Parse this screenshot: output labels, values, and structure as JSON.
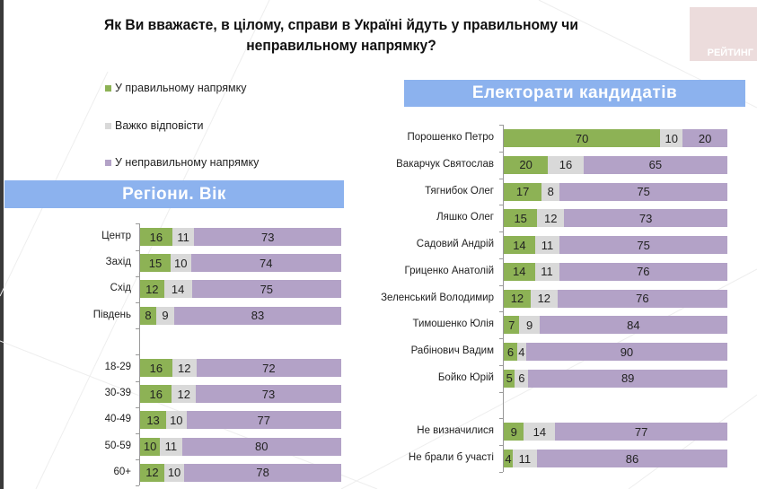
{
  "title": "Як Ви вважаєте, в цілому, справи в Україні йдуть у правильному чи неправильному напрямку?",
  "logo_text": "РЕЙТИНГ",
  "colors": {
    "right": "#8db255",
    "hard": "#d9d9d9",
    "wrong": "#b3a2c7",
    "header": "#8cb2ee"
  },
  "legend": [
    {
      "label": "У правильному напрямку",
      "color": "#8db255"
    },
    {
      "label": "Важко відповісти",
      "color": "#d9d9d9"
    },
    {
      "label": "У неправильному напрямку",
      "color": "#b3a2c7"
    }
  ],
  "chart_data": [
    {
      "type": "bar",
      "stacked": true,
      "orientation": "horizontal",
      "title": "Регіони. Вік",
      "categories": [
        "Центр",
        "Захід",
        "Схід",
        "Південь",
        "",
        "18-29",
        "30-39",
        "40-49",
        "50-59",
        "60+"
      ],
      "series": [
        {
          "name": "У правильному напрямку",
          "values": [
            16,
            15,
            12,
            8,
            null,
            16,
            16,
            13,
            10,
            12
          ]
        },
        {
          "name": "Важко відповісти",
          "values": [
            11,
            10,
            14,
            9,
            null,
            12,
            12,
            10,
            11,
            10
          ]
        },
        {
          "name": "У неправильному напрямку",
          "values": [
            73,
            74,
            75,
            83,
            null,
            72,
            73,
            77,
            80,
            78
          ]
        }
      ]
    },
    {
      "type": "bar",
      "stacked": true,
      "orientation": "horizontal",
      "title": "Електорати кандидатів",
      "categories": [
        "Порошенко Петро",
        "Вакарчук Святослав",
        "Тягнибок Олег",
        "Ляшко Олег",
        "Садовий Андрій",
        "Гриценко Анатолій",
        "Зеленський Володимир",
        "Тимошенко Юлія",
        "Рабінович Вадим",
        "Бойко Юрій",
        "",
        "Не визначилися",
        "Не брали б участі"
      ],
      "series": [
        {
          "name": "У правильному напрямку",
          "values": [
            70,
            20,
            17,
            15,
            14,
            14,
            12,
            7,
            6,
            5,
            null,
            9,
            4
          ]
        },
        {
          "name": "Важко відповісти",
          "values": [
            10,
            16,
            8,
            12,
            11,
            11,
            12,
            9,
            4,
            6,
            null,
            14,
            11
          ]
        },
        {
          "name": "У неправильному напрямку",
          "values": [
            20,
            65,
            75,
            73,
            75,
            76,
            76,
            84,
            90,
            89,
            null,
            77,
            86
          ]
        }
      ]
    }
  ]
}
